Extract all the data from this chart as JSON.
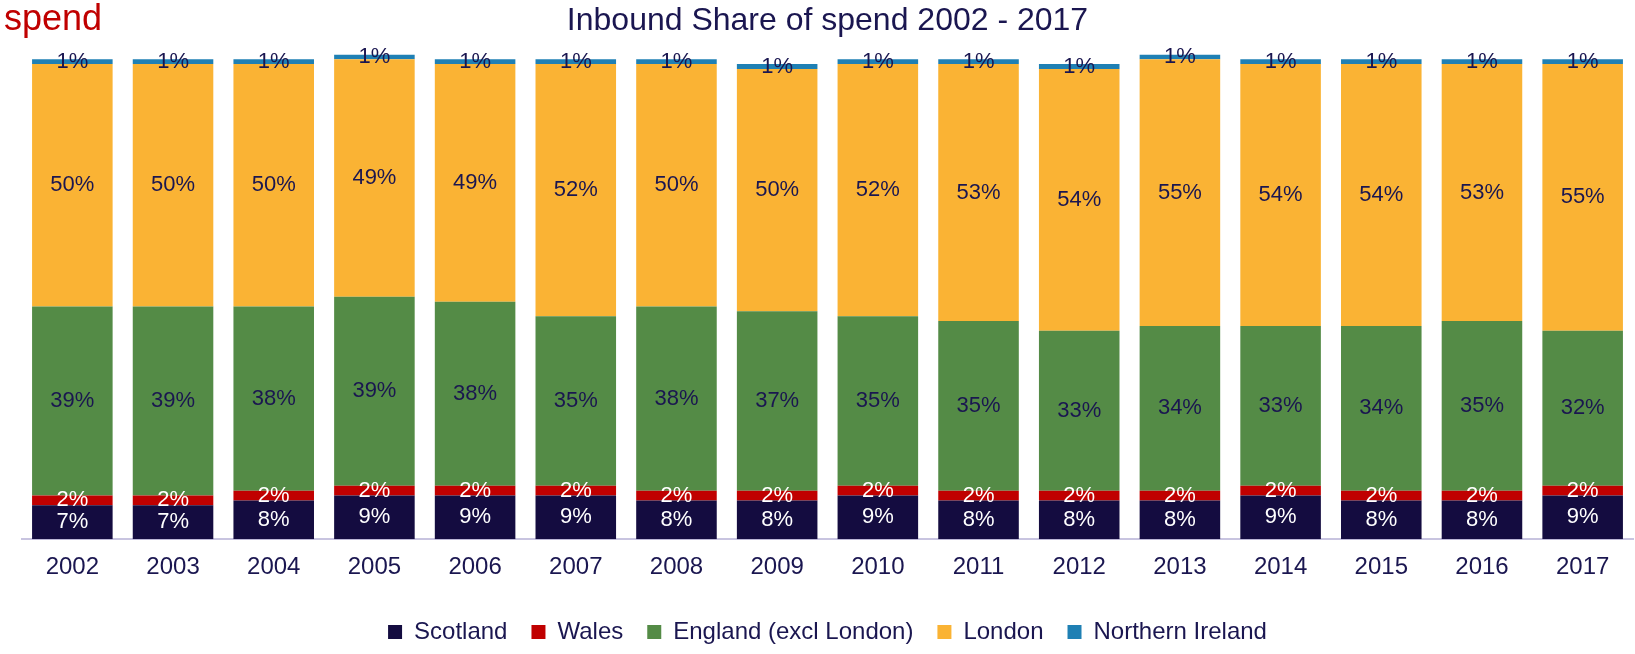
{
  "chart_data": {
    "type": "bar",
    "title": "Inbound Share of spend 2002 - 2017",
    "annotations": [
      "spend"
    ],
    "categories": [
      "2002",
      "2003",
      "2004",
      "2005",
      "2006",
      "2007",
      "2008",
      "2009",
      "2010",
      "2011",
      "2012",
      "2013",
      "2014",
      "2015",
      "2016",
      "2017"
    ],
    "stacked": true,
    "legend": "bottom",
    "grid": false,
    "tick_labels": "x",
    "series": [
      {
        "name": "Scotland",
        "color": "#140c40",
        "values": [
          7,
          7,
          8,
          9,
          9,
          9,
          8,
          8,
          9,
          8,
          8,
          8,
          9,
          8,
          8,
          9
        ],
        "value_labels": [
          "7%",
          "7%",
          "8%",
          "9%",
          "9%",
          "9%",
          "8%",
          "8%",
          "9%",
          "8%",
          "8%",
          "8%",
          "9%",
          "8%",
          "8%",
          "9%"
        ]
      },
      {
        "name": "Wales",
        "color": "#c00000",
        "values": [
          2,
          2,
          2,
          2,
          2,
          2,
          2,
          2,
          2,
          2,
          2,
          2,
          2,
          2,
          2,
          2
        ],
        "value_labels": [
          "2%",
          "2%",
          "2%",
          "2%",
          "2%",
          "2%",
          "2%",
          "2%",
          "2%",
          "2%",
          "2%",
          "2%",
          "2%",
          "2%",
          "2%",
          "2%"
        ]
      },
      {
        "name": "England (excl London)",
        "color": "#548b46",
        "values": [
          39,
          39,
          38,
          39,
          38,
          35,
          38,
          37,
          35,
          35,
          33,
          34,
          33,
          34,
          35,
          32
        ],
        "value_labels": [
          "39%",
          "39%",
          "38%",
          "39%",
          "38%",
          "35%",
          "38%",
          "37%",
          "35%",
          "35%",
          "33%",
          "34%",
          "33%",
          "34%",
          "35%",
          "32%"
        ]
      },
      {
        "name": "London",
        "color": "#fab334",
        "values": [
          50,
          50,
          50,
          49,
          49,
          52,
          50,
          50,
          52,
          53,
          54,
          55,
          54,
          54,
          53,
          55
        ],
        "value_labels": [
          "50%",
          "50%",
          "50%",
          "49%",
          "49%",
          "52%",
          "50%",
          "50%",
          "52%",
          "53%",
          "54%",
          "55%",
          "54%",
          "54%",
          "53%",
          "55%"
        ]
      },
      {
        "name": "Northern Ireland",
        "color": "#1f80b4",
        "values": [
          1,
          1,
          1,
          1,
          1,
          1,
          1,
          1,
          1,
          1,
          1,
          1,
          1,
          1,
          1,
          1
        ],
        "value_labels": [
          "1%",
          "1%",
          "1%",
          "1%",
          "1%",
          "1%",
          "1%",
          "1%",
          "1%",
          "1%",
          "1%",
          "1%",
          "1%",
          "1%",
          "1%",
          "1%"
        ]
      }
    ]
  }
}
